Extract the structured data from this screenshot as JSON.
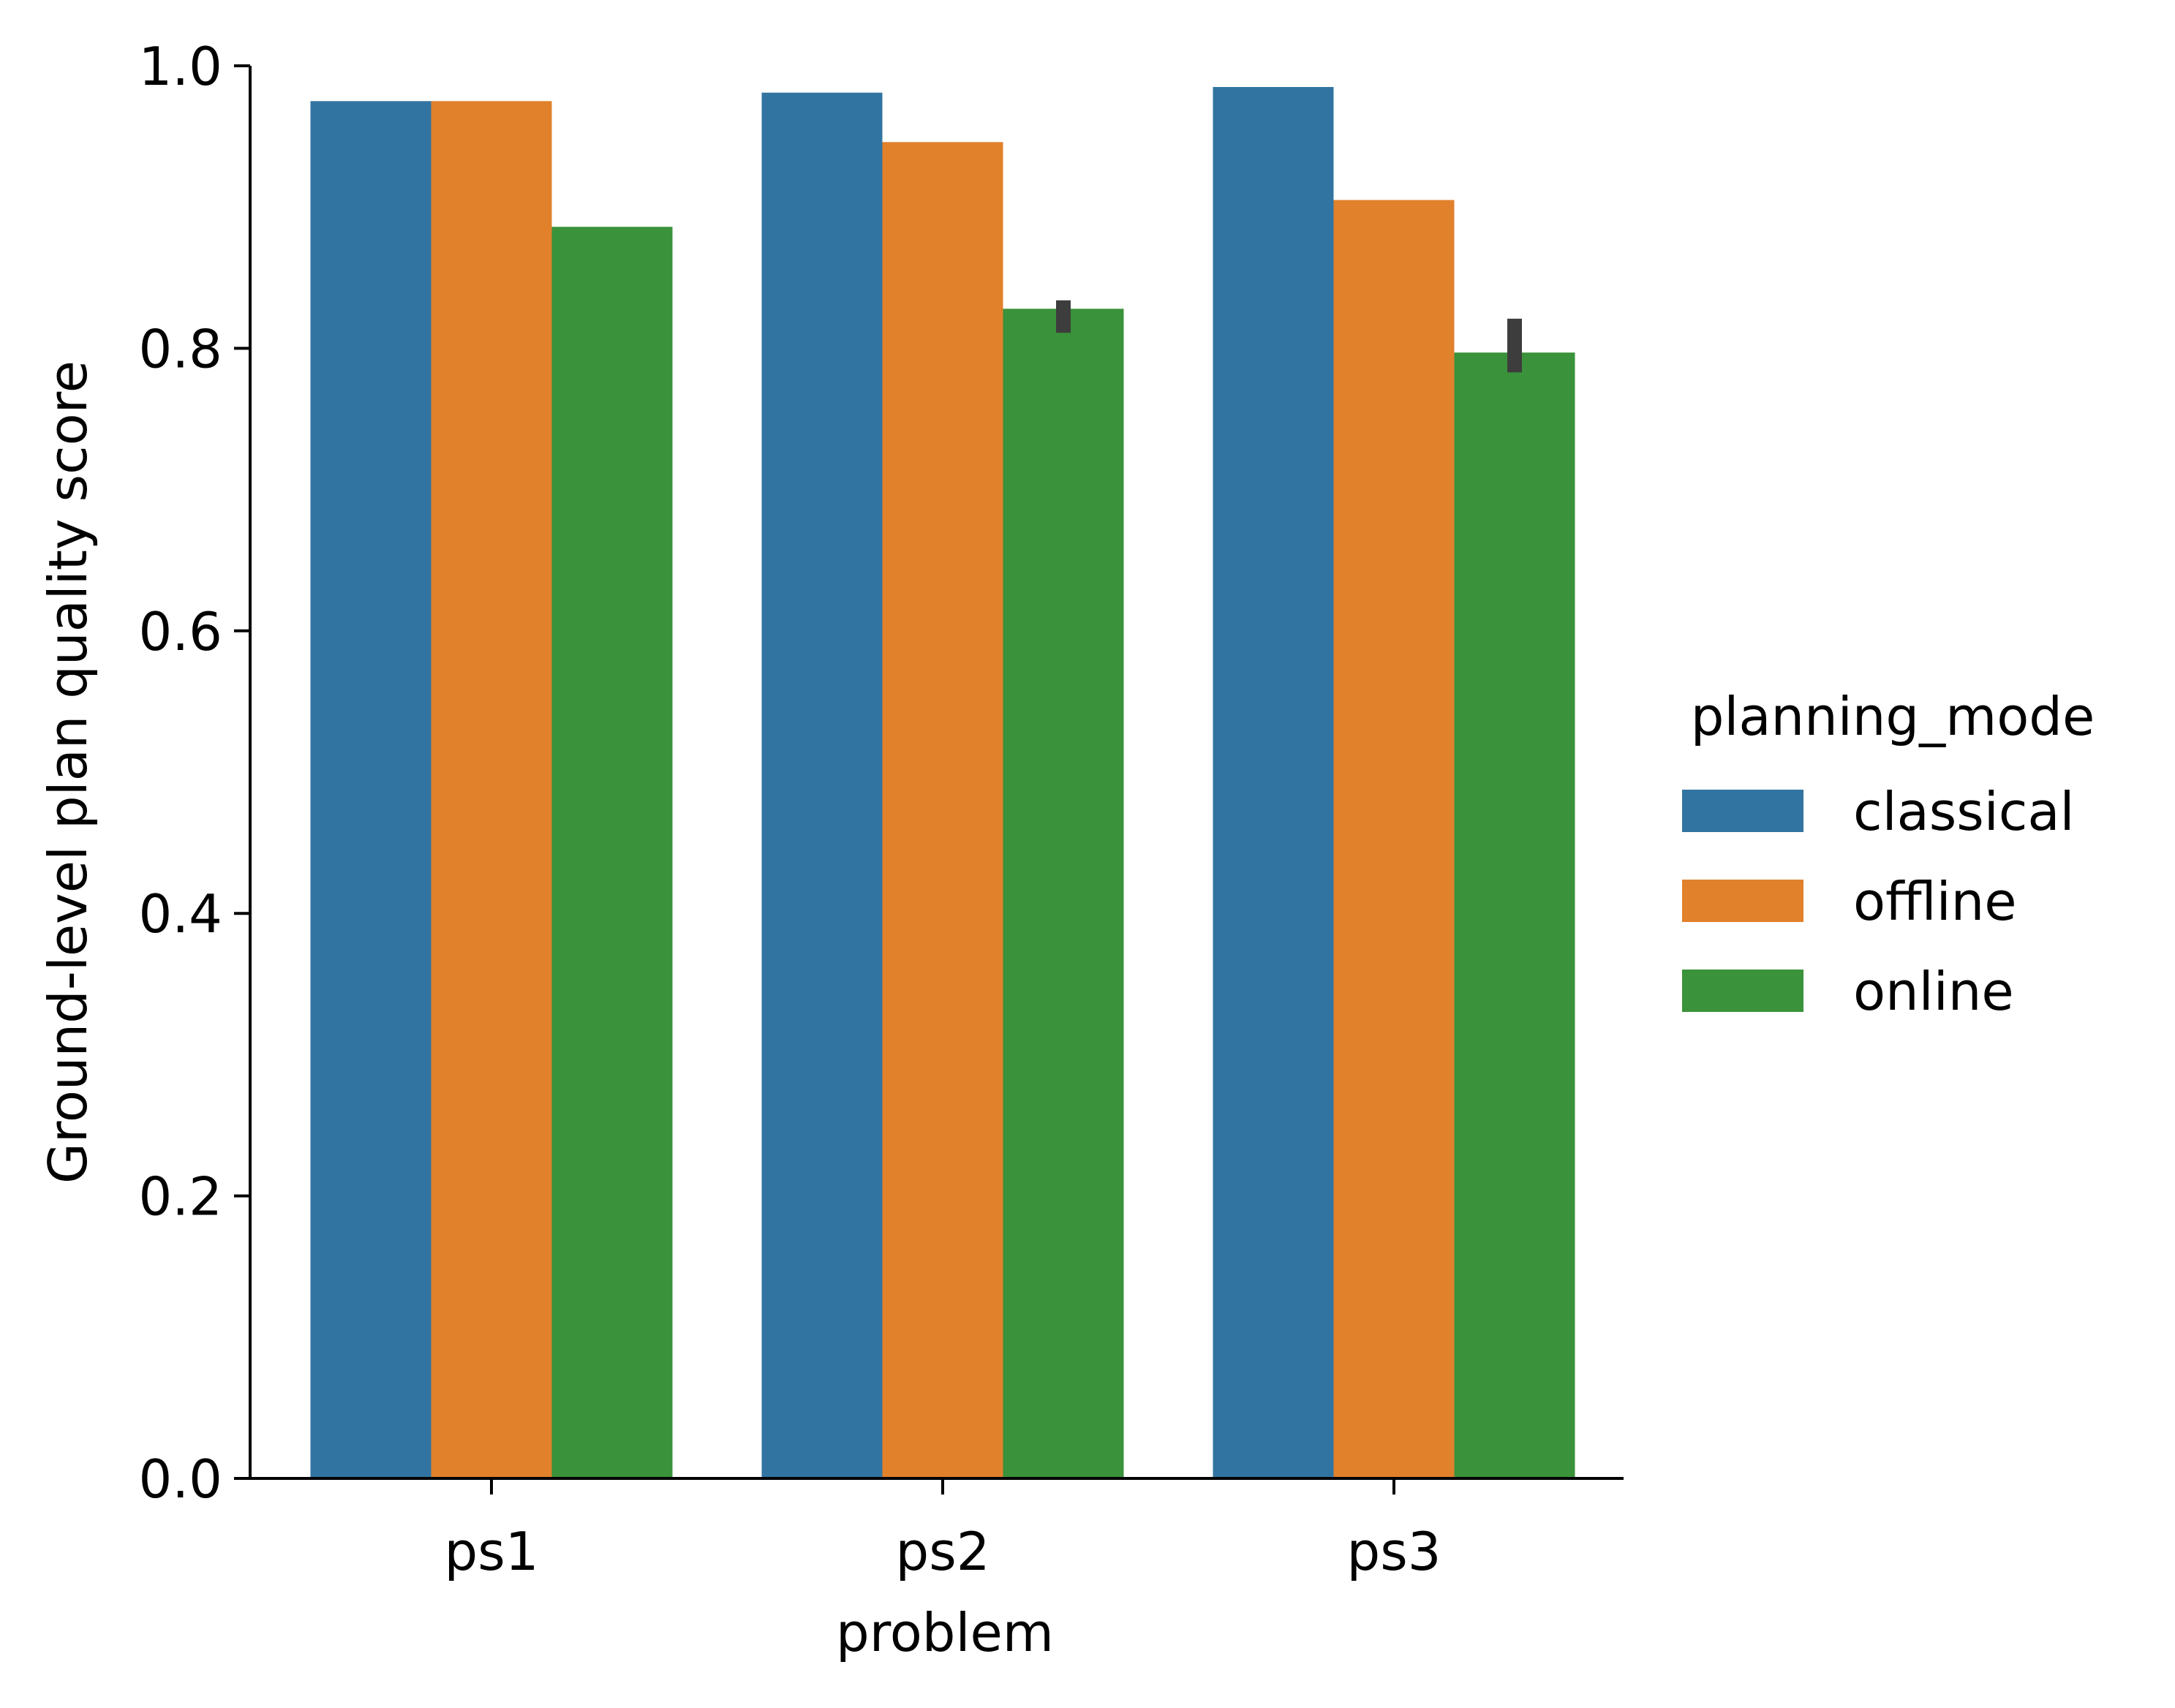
{
  "chart_data": {
    "type": "bar",
    "title": "",
    "xlabel": "problem",
    "ylabel": "Ground-level plan quality score",
    "categories": [
      "ps1",
      "ps2",
      "ps3"
    ],
    "ylim": [
      0,
      1.0
    ],
    "yticks": [
      "0.0",
      "0.2",
      "0.4",
      "0.6",
      "0.8",
      "1.0"
    ],
    "ytick_values": [
      0,
      0.2,
      0.4,
      0.6,
      0.8,
      1.0
    ],
    "legend": {
      "title": "planning_mode",
      "placement": "right"
    },
    "series": [
      {
        "name": "classical",
        "color": "#3274a1",
        "values": [
          0.975,
          0.981,
          0.985
        ],
        "err": [
          null,
          null,
          null
        ]
      },
      {
        "name": "offline",
        "color": "#e1812c",
        "values": [
          0.975,
          0.946,
          0.905
        ],
        "err": [
          null,
          null,
          null
        ]
      },
      {
        "name": "online",
        "color": "#3a923a",
        "values": [
          0.886,
          0.828,
          0.797
        ],
        "err": [
          null,
          [
            0.811,
            0.834
          ],
          [
            0.783,
            0.821
          ]
        ]
      }
    ]
  }
}
